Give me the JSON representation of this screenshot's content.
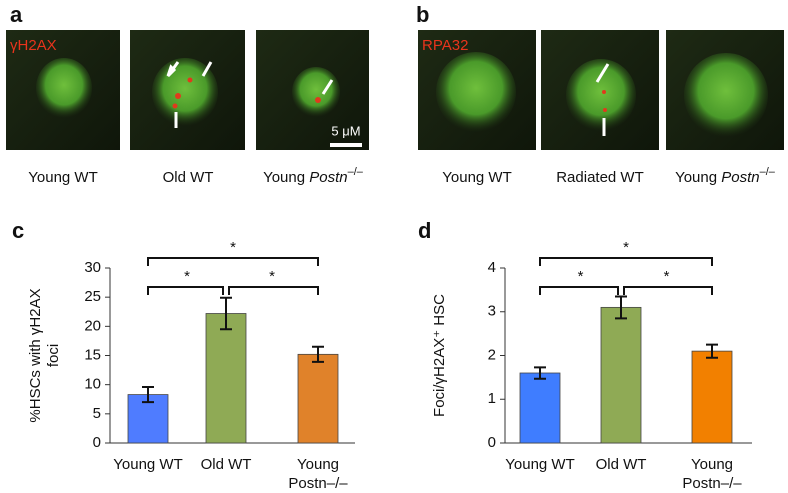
{
  "panels": [
    {
      "label": "a",
      "stain": "γH2AX",
      "scale_bar": "5 μM",
      "captions": [
        {
          "text": "Young WT"
        },
        {
          "text": "Old WT"
        },
        {
          "text": "Young ",
          "gene": "Postn",
          "sup": "–/–"
        }
      ]
    },
    {
      "label": "b",
      "stain": "RPA32",
      "captions": [
        {
          "text": "Young WT"
        },
        {
          "text": "Radiated WT"
        },
        {
          "text": "Young ",
          "gene": "Postn",
          "sup": "–/–"
        }
      ]
    }
  ],
  "chart_data": [
    {
      "type": "bar",
      "panel_label": "c",
      "ylabel": [
        "%HSCs with γH2AX",
        "foci"
      ],
      "categories": [
        [
          "Young WT"
        ],
        [
          "Old WT"
        ],
        [
          "Young",
          "Postn–/–"
        ]
      ],
      "values": [
        8.3,
        22.2,
        15.2
      ],
      "errors": [
        1.3,
        2.7,
        1.3
      ],
      "colors": [
        "#4f7cff",
        "#8faa55",
        "#e0822a"
      ],
      "ylim": [
        0,
        30
      ],
      "yticks": [
        0,
        5,
        10,
        15,
        20,
        25,
        30
      ],
      "significance": [
        {
          "pair": [
            0,
            1
          ],
          "label": "*"
        },
        {
          "pair": [
            1,
            2
          ],
          "label": "*"
        },
        {
          "pair": [
            0,
            2
          ],
          "label": "*"
        }
      ]
    },
    {
      "type": "bar",
      "panel_label": "d",
      "ylabel": [
        "Foci/γH2AX⁺ HSC"
      ],
      "categories": [
        [
          "Young WT"
        ],
        [
          "Old WT"
        ],
        [
          "Young",
          "Postn–/–"
        ]
      ],
      "values": [
        1.6,
        3.1,
        2.1
      ],
      "errors": [
        0.13,
        0.25,
        0.15
      ],
      "colors": [
        "#3f7dff",
        "#8faa55",
        "#f28000"
      ],
      "ylim": [
        0,
        4
      ],
      "yticks": [
        0,
        1,
        2,
        3,
        4
      ],
      "significance": [
        {
          "pair": [
            0,
            1
          ],
          "label": "*"
        },
        {
          "pair": [
            1,
            2
          ],
          "label": "*"
        },
        {
          "pair": [
            0,
            2
          ],
          "label": "*"
        }
      ]
    }
  ]
}
